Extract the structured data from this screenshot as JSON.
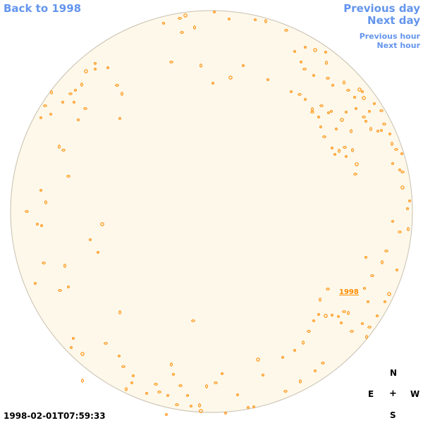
{
  "navigation": {
    "back_label": "Back to 1998",
    "previous_day_label": "Previous day",
    "next_day_label": "Next day",
    "previous_hour_label": "Previous hour",
    "next_hour_label": "Next hour"
  },
  "sky_map": {
    "disc_color": "#fdf8ea",
    "disc_border_color": "#c8c0b0",
    "marker_color": "#ff8c00",
    "marker_label": "1998"
  },
  "compass": {
    "north": "N",
    "south": "S",
    "east": "E",
    "west": "W",
    "center": "+"
  },
  "timestamp": "1998-02-01T07:59:33"
}
